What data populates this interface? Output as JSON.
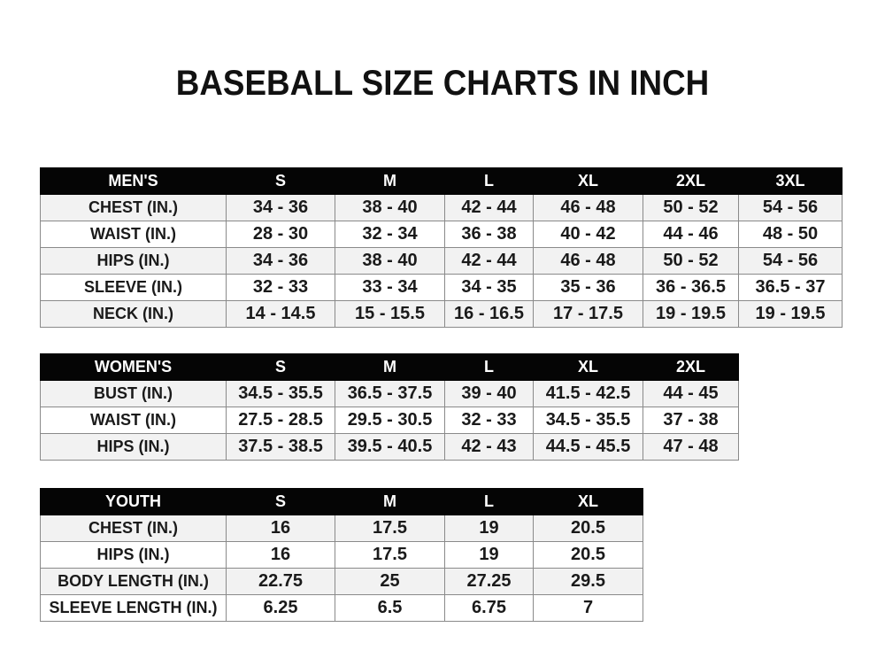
{
  "title": "BASEBALL SIZE CHARTS IN INCH",
  "tables": {
    "men": {
      "headers": [
        "MEN'S",
        "S",
        "M",
        "L",
        "XL",
        "2XL",
        "3XL"
      ],
      "rows": [
        [
          "CHEST (IN.)",
          "34 - 36",
          "38 - 40",
          "42 - 44",
          "46 - 48",
          "50 - 52",
          "54 - 56"
        ],
        [
          "WAIST (IN.)",
          "28 - 30",
          "32 - 34",
          "36 - 38",
          "40 - 42",
          "44 - 46",
          "48 - 50"
        ],
        [
          "HIPS (IN.)",
          "34 - 36",
          "38 - 40",
          "42 - 44",
          "46 - 48",
          "50 - 52",
          "54 - 56"
        ],
        [
          "SLEEVE (IN.)",
          "32 - 33",
          "33 - 34",
          "34 - 35",
          "35 - 36",
          "36 - 36.5",
          "36.5 - 37"
        ],
        [
          "NECK (IN.)",
          "14 - 14.5",
          "15 - 15.5",
          "16 - 16.5",
          "17 - 17.5",
          "19 - 19.5",
          "19 - 19.5"
        ]
      ]
    },
    "women": {
      "headers": [
        "WOMEN'S",
        "S",
        "M",
        "L",
        "XL",
        "2XL"
      ],
      "rows": [
        [
          "BUST (IN.)",
          "34.5 - 35.5",
          "36.5 - 37.5",
          "39 - 40",
          "41.5 - 42.5",
          "44 - 45"
        ],
        [
          "WAIST (IN.)",
          "27.5 - 28.5",
          "29.5 - 30.5",
          "32 - 33",
          "34.5 - 35.5",
          "37 - 38"
        ],
        [
          "HIPS (IN.)",
          "37.5 - 38.5",
          "39.5 - 40.5",
          "42 - 43",
          "44.5 - 45.5",
          "47 - 48"
        ]
      ]
    },
    "youth": {
      "headers": [
        "YOUTH",
        "S",
        "M",
        "L",
        "XL"
      ],
      "rows": [
        [
          "CHEST (IN.)",
          "16",
          "17.5",
          "19",
          "20.5"
        ],
        [
          "HIPS (IN.)",
          "16",
          "17.5",
          "19",
          "20.5"
        ],
        [
          "BODY LENGTH (IN.)",
          "22.75",
          "25",
          "27.25",
          "29.5"
        ],
        [
          "SLEEVE LENGTH (IN.)",
          "6.25",
          "6.5",
          "6.75",
          "7"
        ]
      ]
    }
  }
}
